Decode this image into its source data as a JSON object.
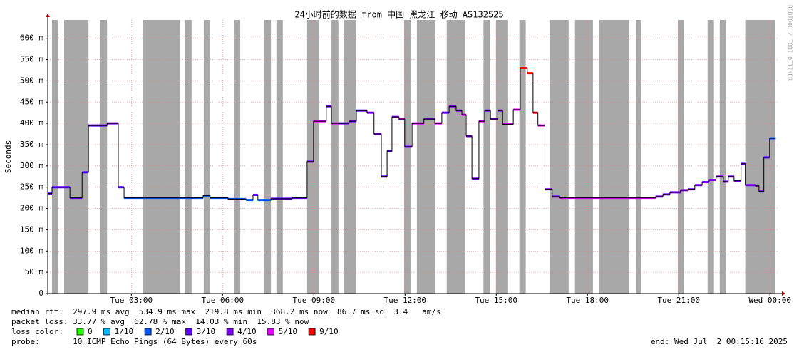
{
  "chart_data": {
    "type": "step",
    "title": "24小时前的数据 from 中国 黑龙江 移动 AS132525",
    "y_label": "Seconds",
    "watermark": "RRDTOOL / TOBI OETIKER",
    "ylim": [
      0,
      0.643
    ],
    "yticks": [
      0,
      {
        "value": 0.05,
        "label": "50 m"
      },
      {
        "value": 0.1,
        "label": "100 m"
      },
      {
        "value": 0.15,
        "label": "150 m"
      },
      {
        "value": 0.2,
        "label": "200 m"
      },
      {
        "value": 0.25,
        "label": "250 m"
      },
      {
        "value": 0.3,
        "label": "300 m"
      },
      {
        "value": 0.35,
        "label": "350 m"
      },
      {
        "value": 0.4,
        "label": "400 m"
      },
      {
        "value": 0.45,
        "label": "450 m"
      },
      {
        "value": 0.5,
        "label": "500 m"
      },
      {
        "value": 0.55,
        "label": "550 m"
      },
      {
        "value": 0.6,
        "label": "600 m"
      }
    ],
    "xlim": [
      0.25,
      24.3
    ],
    "xticks": [
      {
        "value": 3,
        "label": "Tue 03:00"
      },
      {
        "value": 6,
        "label": "Tue 06:00"
      },
      {
        "value": 9,
        "label": "Tue 09:00"
      },
      {
        "value": 12,
        "label": "Tue 12:00"
      },
      {
        "value": 15,
        "label": "Tue 15:00"
      },
      {
        "value": 18,
        "label": "Tue 18:00"
      },
      {
        "value": 21,
        "label": "Tue 21:00"
      },
      {
        "value": 24,
        "label": "Wed 00:00"
      }
    ],
    "grid": true,
    "line_color": "#000000",
    "band_color": "#a8a8a8",
    "x": [
      0.25,
      0.39,
      0.79,
      0.98,
      1.38,
      1.59,
      1.96,
      2.2,
      2.57,
      2.76,
      3.37,
      5.24,
      5.36,
      5.59,
      6.18,
      6.77,
      7.0,
      7.16,
      7.59,
      8.29,
      8.78,
      8.99,
      9.41,
      9.58,
      9.81,
      10.16,
      10.4,
      10.75,
      10.98,
      11.22,
      11.41,
      11.57,
      11.8,
      11.99,
      12.23,
      12.62,
      12.98,
      13.21,
      13.45,
      13.68,
      13.87,
      14.01,
      14.2,
      14.43,
      14.62,
      14.81,
      15.05,
      15.21,
      15.56,
      15.79,
      16.02,
      16.21,
      16.37,
      16.6,
      16.84,
      17.07,
      19.77,
      20.24,
      20.48,
      20.71,
      21.06,
      21.3,
      21.53,
      21.77,
      22.0,
      22.23,
      22.47,
      22.63,
      22.82,
      23.05,
      23.19,
      23.52,
      23.64,
      23.8,
      23.99
    ],
    "values": [
      0.235,
      0.25,
      0.25,
      0.225,
      0.285,
      0.395,
      0.395,
      0.4,
      0.25,
      0.225,
      0.225,
      0.225,
      0.23,
      0.225,
      0.222,
      0.22,
      0.232,
      0.22,
      0.223,
      0.225,
      0.31,
      0.405,
      0.44,
      0.4,
      0.4,
      0.405,
      0.43,
      0.425,
      0.375,
      0.275,
      0.335,
      0.415,
      0.41,
      0.345,
      0.4,
      0.41,
      0.4,
      0.425,
      0.44,
      0.43,
      0.42,
      0.37,
      0.27,
      0.405,
      0.43,
      0.41,
      0.43,
      0.398,
      0.432,
      0.53,
      0.518,
      0.425,
      0.395,
      0.245,
      0.228,
      0.225,
      0.225,
      0.228,
      0.233,
      0.238,
      0.243,
      0.245,
      0.255,
      0.262,
      0.267,
      0.275,
      0.263,
      0.275,
      0.265,
      0.305,
      0.255,
      0.253,
      0.24,
      0.32,
      0.365
    ],
    "point_colors": [
      "#5e00ff",
      "#5e00ff",
      "#5e00ff",
      "#5e00ff",
      "#5e00ff",
      "#5e00ff",
      "#5e00ff",
      "#7e00ff",
      "#5e00ff",
      "#0059ff",
      "#0059ff",
      "#0059ff",
      "#0059ff",
      "#0059ff",
      "#0059ff",
      "#0059ff",
      "#5e00ff",
      "#0059ff",
      "#5e00ff",
      "#5e00ff",
      "#7e00ff",
      "#dd00ff",
      "#7e00ff",
      "#dd00ff",
      "#7e00ff",
      "#7e00ff",
      "#5e00ff",
      "#7e00ff",
      "#7e00ff",
      "#5e00ff",
      "#5e00ff",
      "#7e00ff",
      "#dd00ff",
      "#7e00ff",
      "#dd00ff",
      "#7e00ff",
      "#dd00ff",
      "#7e00ff",
      "#7e00ff",
      "#7e00ff",
      "#dd00ff",
      "#7e00ff",
      "#7e00ff",
      "#dd00ff",
      "#7e00ff",
      "#7e00ff",
      "#7e00ff",
      "#dd00ff",
      "#dd00ff",
      "#ff0000",
      "#ff0000",
      "#ff0000",
      "#dd00ff",
      "#7e00ff",
      "#7e00ff",
      "#dd00ff",
      "#dd00ff",
      "#7e00ff",
      "#7e00ff",
      "#7e00ff",
      "#7e00ff",
      "#7e00ff",
      "#7e00ff",
      "#7e00ff",
      "#7e00ff",
      "#7e00ff",
      "#7e00ff",
      "#7e00ff",
      "#7e00ff",
      "#7e00ff",
      "#7e00ff",
      "#7e00ff",
      "#7e00ff",
      "#5e00ff",
      "#0059ff"
    ],
    "loss_bands": [
      [
        0.39,
        0.58
      ],
      [
        0.79,
        1.59
      ],
      [
        1.96,
        2.2
      ],
      [
        3.39,
        4.59
      ],
      [
        4.77,
        4.98
      ],
      [
        5.38,
        5.59
      ],
      [
        6.39,
        6.58
      ],
      [
        7.37,
        7.59
      ],
      [
        7.77,
        7.98
      ],
      [
        8.78,
        9.18
      ],
      [
        9.58,
        9.81
      ],
      [
        9.98,
        10.4
      ],
      [
        11.97,
        12.18
      ],
      [
        12.39,
        12.98
      ],
      [
        13.37,
        13.98
      ],
      [
        14.58,
        14.8
      ],
      [
        14.99,
        15.39
      ],
      [
        15.76,
        15.97
      ],
      [
        16.77,
        17.38
      ],
      [
        17.59,
        18.18
      ],
      [
        18.39,
        19.37
      ],
      [
        19.59,
        19.77
      ],
      [
        20.97,
        21.18
      ],
      [
        21.95,
        22.16
      ],
      [
        22.35,
        22.56
      ],
      [
        23.19,
        24.18
      ]
    ],
    "stats": [
      "median rtt:  297.9 ms avg  534.9 ms max  219.8 ms min  368.2 ms now  86.7 ms sd  3.4   am/s",
      "packet loss: 33.77 % avg  62.78 % max  14.03 % min  15.83 % now"
    ],
    "legend_title": "loss color:",
    "legend": [
      {
        "label": "0",
        "color": "#26ff00"
      },
      {
        "label": "1/10",
        "color": "#00b8ff"
      },
      {
        "label": "2/10",
        "color": "#0059ff"
      },
      {
        "label": "3/10",
        "color": "#5e00ff"
      },
      {
        "label": "4/10",
        "color": "#7e00ff"
      },
      {
        "label": "5/10",
        "color": "#dd00ff"
      },
      {
        "label": "9/10",
        "color": "#ff0000"
      }
    ],
    "probe": "probe:       10 ICMP Echo Pings (64 Bytes) every 60s",
    "end": "end: Wed Jul  2 00:15:16 2025"
  }
}
